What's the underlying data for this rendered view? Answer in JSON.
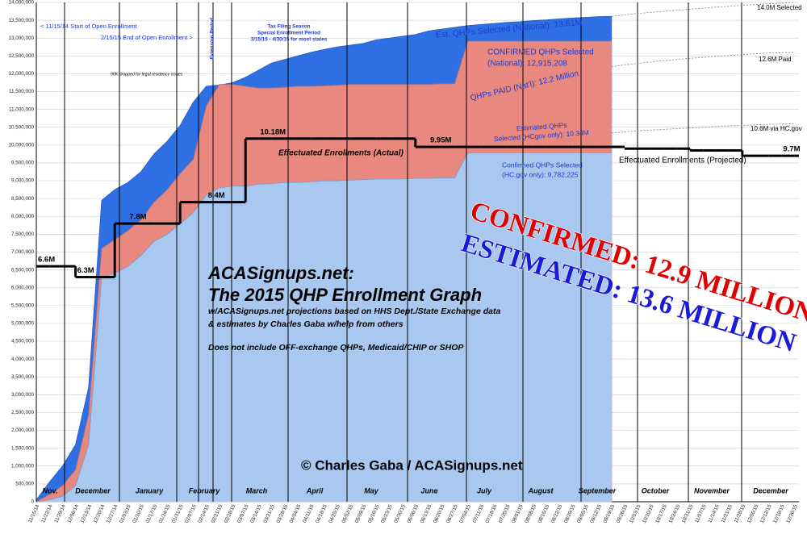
{
  "chart_data": {
    "type": "area",
    "categories": [
      "11/15/14",
      "11/22/14",
      "11/29/14",
      "12/06/14",
      "12/13/14",
      "12/20/14",
      "12/27/14",
      "01/03/15",
      "01/10/15",
      "01/17/15",
      "01/24/15",
      "01/31/15",
      "02/07/15",
      "02/14/15",
      "02/21/15",
      "02/28/15",
      "03/07/15",
      "03/14/15",
      "03/21/15",
      "03/28/15",
      "04/04/15",
      "04/11/15",
      "04/18/15",
      "04/25/15",
      "05/02/15",
      "05/09/15",
      "05/16/15",
      "05/23/15",
      "05/30/15",
      "06/06/15",
      "06/13/15",
      "06/20/15",
      "06/27/15",
      "07/04/15",
      "07/11/15",
      "07/18/15",
      "07/25/15",
      "08/01/15",
      "08/08/15",
      "08/15/15",
      "08/22/15",
      "08/29/15",
      "09/05/15",
      "09/12/15",
      "09/19/15",
      "09/26/15",
      "10/03/15",
      "10/10/15",
      "10/17/15",
      "10/24/15",
      "10/31/15",
      "11/07/15",
      "11/14/15",
      "11/21/15",
      "11/28/15",
      "12/05/15",
      "12/12/15",
      "12/19/15",
      "12/26/15"
    ],
    "month_labels": [
      "Nov.",
      "December",
      "January",
      "February",
      "March",
      "April",
      "May",
      "June",
      "July",
      "August",
      "September",
      "October",
      "November",
      "December"
    ],
    "ylim": [
      0,
      14000000
    ],
    "yticks": [
      0,
      {
        "value": 500000,
        "label": "500,000"
      },
      {
        "value": 1000000,
        "label": "1,000,000"
      },
      {
        "value": 1500000,
        "label": "1,500,000"
      },
      {
        "value": 2000000,
        "label": "2,000,000"
      },
      {
        "value": 2500000,
        "label": "2,500,000"
      },
      {
        "value": 3000000,
        "label": "3,000,000"
      },
      {
        "value": 3500000,
        "label": "3,500,000"
      },
      {
        "value": 4000000,
        "label": "4,000,000"
      },
      {
        "value": 4500000,
        "label": "4,500,000"
      },
      {
        "value": 5000000,
        "label": "5,000,000"
      },
      {
        "value": 5500000,
        "label": "5,500,000"
      },
      {
        "value": 6000000,
        "label": "6,000,000"
      },
      {
        "value": 6500000,
        "label": "6,500,000"
      },
      {
        "value": 7000000,
        "label": "7,000,000"
      },
      {
        "value": 7500000,
        "label": "7,500,000"
      },
      {
        "value": 8000000,
        "label": "8,000,000"
      },
      {
        "value": 8500000,
        "label": "8,500,000"
      },
      {
        "value": 9000000,
        "label": "9,000,000"
      },
      {
        "value": 9500000,
        "label": "9,500,000"
      },
      {
        "value": 10000000,
        "label": "10,000,000"
      },
      {
        "value": 10500000,
        "label": "10,500,000"
      },
      {
        "value": 11000000,
        "label": "11,000,000"
      },
      {
        "value": 11500000,
        "label": "11,500,000"
      },
      {
        "value": 12000000,
        "label": "12,000,000"
      },
      {
        "value": 12500000,
        "label": "12,500,000"
      },
      {
        "value": 13000000,
        "label": "13,000,000"
      },
      {
        "value": 13500000,
        "label": "13,500,000"
      },
      {
        "value": 14000000,
        "label": "14,000,000"
      }
    ],
    "grid": true,
    "series": [
      {
        "name": "Est. QHPs Selected (National): 13.61M",
        "style": "area",
        "color": "#2f6fe4",
        "values": [
          50000,
          550000,
          1000000,
          1600000,
          3200000,
          8450000,
          8750000,
          8950000,
          9250000,
          9750000,
          10100000,
          10550000,
          11200000,
          11650000,
          11680000,
          11750000,
          11900000,
          12100000,
          12300000,
          12400000,
          12500000,
          12600000,
          12680000,
          12750000,
          12800000,
          12850000,
          12950000,
          13000000,
          13050000,
          13100000,
          13200000,
          13250000,
          13300000,
          13350000,
          13380000,
          13410000,
          13440000,
          13460000,
          13490000,
          13510000,
          13540000,
          13560000,
          13580000,
          13600000,
          13610000,
          null,
          null,
          null,
          null,
          null,
          null,
          null,
          null,
          null,
          null,
          null,
          null,
          null,
          null
        ]
      },
      {
        "style": "area",
        "color": "#e9887f",
        "values": [
          0,
          200000,
          450000,
          900000,
          2450000,
          7100000,
          7350000,
          7600000,
          7900000,
          8400000,
          8750000,
          9200000,
          9600000,
          11100000,
          11700000,
          11700000,
          11650000,
          11600000,
          11600000,
          11620000,
          11650000,
          11650000,
          11660000,
          11680000,
          11700000,
          11700000,
          11700000,
          11700000,
          11700000,
          11700000,
          11700000,
          11720000,
          11720000,
          12915208,
          12915208,
          12915208,
          12915208,
          12915208,
          12915208,
          12915208,
          12915208,
          12915208,
          12915208,
          12915208,
          12915208,
          null,
          null,
          null,
          null,
          null,
          null,
          null,
          null,
          null,
          null,
          null,
          null,
          null,
          null
        ]
      },
      {
        "style": "area",
        "color": "#a9c8ef",
        "values": [
          0,
          50000,
          150000,
          450000,
          1600000,
          6300000,
          6400000,
          6600000,
          6900000,
          7300000,
          7500000,
          7800000,
          8100000,
          8600000,
          8800000,
          8850000,
          8850000,
          8900000,
          8920000,
          8950000,
          8950000,
          8970000,
          9000000,
          9000000,
          9020000,
          9030000,
          9050000,
          9050000,
          9050000,
          9070000,
          9070000,
          9080000,
          9080000,
          9782225,
          9782225,
          9782225,
          9782225,
          9782225,
          9782225,
          9782225,
          9782225,
          9782225,
          9782225,
          9782225,
          9782225,
          null,
          null,
          null,
          null,
          null,
          null,
          null,
          null,
          null,
          null,
          null,
          null,
          null,
          null
        ]
      },
      {
        "name": "Effectuated Enrollments (Actual)",
        "style": "step",
        "color": "#000000",
        "values": [
          6600000,
          6600000,
          6600000,
          6300000,
          6300000,
          6300000,
          7800000,
          7800000,
          7800000,
          7800000,
          7800000,
          8400000,
          8400000,
          8400000,
          8400000,
          8400000,
          10180000,
          10180000,
          10180000,
          10180000,
          10180000,
          10180000,
          10180000,
          10180000,
          10180000,
          10180000,
          10180000,
          10180000,
          10180000,
          9950000,
          9950000,
          9950000,
          9950000,
          9950000,
          9950000,
          9950000,
          9950000,
          9950000,
          9950000,
          9950000,
          9950000,
          9950000,
          9950000,
          9950000,
          9950000,
          null,
          null,
          null,
          null,
          null,
          null,
          null,
          null,
          null,
          null,
          null,
          null,
          null,
          null
        ],
        "value_labels": [
          "6.6M",
          null,
          null,
          "6.3M",
          null,
          null,
          null,
          "7.8M",
          null,
          null,
          null,
          null,
          null,
          "8.4M",
          null,
          null,
          null,
          "10.18M",
          null,
          null,
          null,
          null,
          null,
          null,
          null,
          null,
          null,
          null,
          null,
          null,
          "9.95M",
          null,
          null,
          null,
          null,
          null,
          null,
          null,
          null,
          null,
          null,
          null,
          null,
          null,
          null,
          null,
          null,
          null,
          null,
          null,
          null,
          null,
          null,
          null,
          null,
          null,
          null,
          null,
          null
        ]
      },
      {
        "name": "Effectuated Enrollments (Projected)",
        "style": "step",
        "color": "#000000",
        "values": [
          null,
          null,
          null,
          null,
          null,
          null,
          null,
          null,
          null,
          null,
          null,
          null,
          null,
          null,
          null,
          null,
          null,
          null,
          null,
          null,
          null,
          null,
          null,
          null,
          null,
          null,
          null,
          null,
          null,
          null,
          null,
          null,
          null,
          null,
          null,
          null,
          null,
          null,
          null,
          null,
          null,
          null,
          null,
          null,
          null,
          9900000,
          9900000,
          9900000,
          9900000,
          9900000,
          9850000,
          9850000,
          9850000,
          9850000,
          9700000,
          9700000,
          9700000,
          9700000,
          9700000
        ],
        "value_labels": [
          null,
          null,
          null,
          null,
          null,
          null,
          null,
          null,
          null,
          null,
          null,
          null,
          null,
          null,
          null,
          null,
          null,
          null,
          null,
          null,
          null,
          null,
          null,
          null,
          null,
          null,
          null,
          null,
          null,
          null,
          null,
          null,
          null,
          null,
          null,
          null,
          null,
          null,
          null,
          null,
          null,
          null,
          null,
          null,
          null,
          null,
          null,
          null,
          null,
          null,
          null,
          null,
          null,
          null,
          null,
          null,
          null,
          "9.7M",
          null
        ]
      },
      {
        "style": "dashed",
        "color": "#8a8a8a",
        "values": [
          null,
          null,
          null,
          null,
          null,
          null,
          null,
          null,
          null,
          null,
          null,
          null,
          null,
          null,
          null,
          null,
          null,
          null,
          null,
          null,
          null,
          null,
          null,
          null,
          null,
          null,
          null,
          null,
          null,
          null,
          null,
          null,
          null,
          null,
          null,
          null,
          null,
          null,
          null,
          null,
          null,
          null,
          null,
          null,
          13610000,
          13650000,
          13690000,
          13720000,
          13750000,
          13780000,
          13810000,
          13840000,
          13870000,
          13890000,
          13920000,
          13940000,
          13960000,
          13980000,
          14000000
        ]
      },
      {
        "style": "dashed",
        "color": "#8a8a8a",
        "values": [
          null,
          null,
          null,
          null,
          null,
          null,
          null,
          null,
          null,
          null,
          null,
          null,
          null,
          null,
          null,
          null,
          null,
          null,
          null,
          null,
          null,
          null,
          null,
          null,
          null,
          null,
          null,
          null,
          null,
          null,
          null,
          null,
          null,
          null,
          null,
          null,
          null,
          null,
          null,
          null,
          null,
          null,
          null,
          null,
          12200000,
          12250000,
          12290000,
          12330000,
          12370000,
          12400000,
          12430000,
          12460000,
          12490000,
          12510000,
          12540000,
          12560000,
          12580000,
          12590000,
          12600000
        ]
      },
      {
        "style": "dashed",
        "color": "#8a8a8a",
        "values": [
          null,
          null,
          null,
          null,
          null,
          null,
          null,
          null,
          null,
          null,
          null,
          null,
          null,
          null,
          null,
          null,
          null,
          null,
          null,
          null,
          null,
          null,
          null,
          null,
          null,
          null,
          null,
          null,
          null,
          null,
          null,
          null,
          null,
          null,
          null,
          null,
          null,
          null,
          null,
          null,
          null,
          null,
          null,
          null,
          10340000,
          10370000,
          10400000,
          10420000,
          10440000,
          10460000,
          10480000,
          10500000,
          10520000,
          10540000,
          10550000,
          10570000,
          10580000,
          10590000,
          10600000
        ]
      }
    ],
    "annotations": [
      "< 11/15/14 Start of Open Enrollment",
      "2/15/15 End of Open Enrollment >",
      "Extension Period",
      "Tax Filing Season",
      "Special Enrollment Period",
      "3/15/15 - 4/30/15 for most states",
      "90K dropped for legal residency issues",
      "CONFIRMED QHPs Selected",
      "(National): 12,915,208",
      "QHPs PAID (Nat'l): 12.2 Million",
      "Estimated QHPs",
      "Selected (HCgov only): 10.34M",
      "Confirmed QHPs Selected",
      "(HC.gov only): 9,782,225",
      "14.0M Selected",
      "12.6M Paid",
      "10.6M via HC.gov",
      "ACASignups.net:",
      "The 2015 QHP Enrollment Graph",
      "w/ACASignups.net projections based on HHS Dept./State Exchange data",
      "& estimates by Charles Gaba w/help from others",
      "Does not include OFF-exchange QHPs, Medicaid/CHIP or SHOP",
      "© Charles Gaba / ACASignups.net",
      "CONFIRMED: 12.9 MILLION",
      "ESTIMATED: 13.6 MILLION"
    ]
  }
}
